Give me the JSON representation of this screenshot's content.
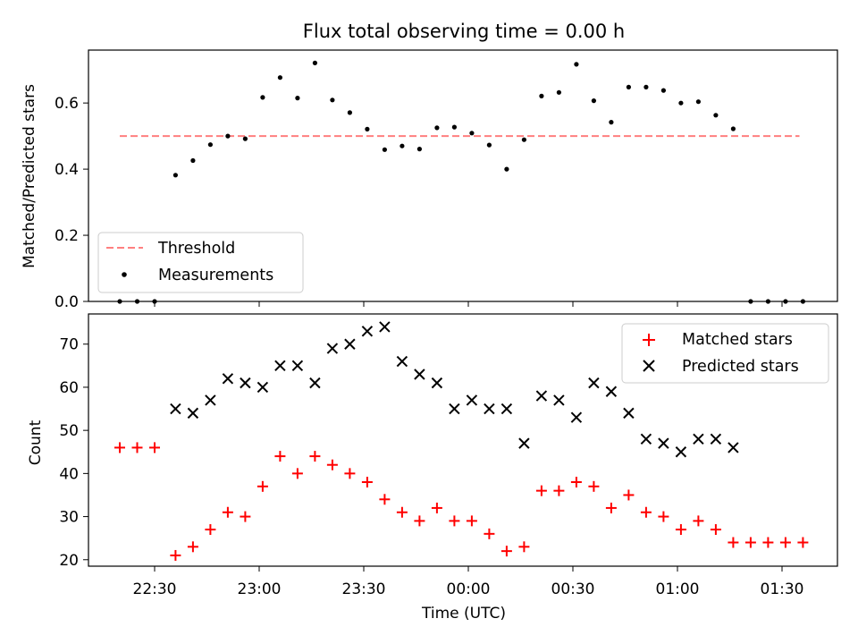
{
  "chart_data": [
    {
      "type": "scatter",
      "title": "Flux total observing time = 0.00 h",
      "ylabel": "Matched/Predicted stars",
      "xlabel": "",
      "ylim": [
        0,
        0.76
      ],
      "yticks": [
        0.0,
        0.2,
        0.4,
        0.6
      ],
      "ytick_labels": [
        "0.0",
        "0.2",
        "0.4",
        "0.6"
      ],
      "legend": {
        "position": "lower-left",
        "entries": [
          "Threshold",
          "Measurements"
        ]
      },
      "threshold": {
        "name": "Threshold",
        "value": 0.5,
        "x_start": "22:20",
        "x_end": "01:35",
        "color": "#ff7f7f"
      },
      "series": [
        {
          "name": "Measurements",
          "marker": "dot",
          "color": "#000000",
          "x": [
            "22:20",
            "22:25",
            "22:30",
            "22:36",
            "22:41",
            "22:46",
            "22:51",
            "22:56",
            "23:01",
            "23:06",
            "23:11",
            "23:16",
            "23:21",
            "23:26",
            "23:31",
            "23:36",
            "23:41",
            "23:46",
            "23:51",
            "23:56",
            "00:01",
            "00:06",
            "00:11",
            "00:16",
            "00:21",
            "00:26",
            "00:31",
            "00:36",
            "00:41",
            "00:46",
            "00:51",
            "00:56",
            "01:01",
            "01:06",
            "01:11",
            "01:16",
            "01:21",
            "01:26",
            "01:31",
            "01:36"
          ],
          "y": [
            0.0,
            0.0,
            0.0,
            0.382,
            0.426,
            0.474,
            0.5,
            0.492,
            0.617,
            0.677,
            0.615,
            0.721,
            0.609,
            0.571,
            0.521,
            0.459,
            0.47,
            0.461,
            0.525,
            0.527,
            0.509,
            0.473,
            0.4,
            0.489,
            0.621,
            0.632,
            0.717,
            0.607,
            0.542,
            0.648,
            0.648,
            0.638,
            0.6,
            0.604,
            0.563,
            0.522,
            0.0,
            0.0,
            0.0,
            0.0
          ]
        }
      ]
    },
    {
      "type": "scatter",
      "title": "",
      "ylabel": "Count",
      "xlabel": "Time (UTC)",
      "ylim": [
        18.5,
        77
      ],
      "yticks": [
        20,
        30,
        40,
        50,
        60,
        70
      ],
      "ytick_labels": [
        "20",
        "30",
        "40",
        "50",
        "60",
        "70"
      ],
      "xticks": [
        "22:30",
        "23:00",
        "23:30",
        "00:00",
        "00:30",
        "01:00",
        "01:30"
      ],
      "legend": {
        "position": "top-right",
        "entries": [
          "Matched stars",
          "Predicted stars"
        ]
      },
      "series": [
        {
          "name": "Matched stars",
          "marker": "plus",
          "color": "#ff0000",
          "x": [
            "22:20",
            "22:25",
            "22:30",
            "22:36",
            "22:41",
            "22:46",
            "22:51",
            "22:56",
            "23:01",
            "23:06",
            "23:11",
            "23:16",
            "23:21",
            "23:26",
            "23:31",
            "23:36",
            "23:41",
            "23:46",
            "23:51",
            "23:56",
            "00:01",
            "00:06",
            "00:11",
            "00:16",
            "00:21",
            "00:26",
            "00:31",
            "00:36",
            "00:41",
            "00:46",
            "00:51",
            "00:56",
            "01:01",
            "01:06",
            "01:11",
            "01:16",
            "01:21",
            "01:26",
            "01:31",
            "01:36"
          ],
          "y": [
            46,
            46,
            46,
            21,
            23,
            27,
            31,
            30,
            37,
            44,
            40,
            44,
            42,
            40,
            38,
            34,
            31,
            29,
            32,
            29,
            29,
            26,
            22,
            23,
            36,
            36,
            38,
            37,
            32,
            35,
            31,
            30,
            27,
            29,
            27,
            24,
            24,
            24,
            24,
            24
          ]
        },
        {
          "name": "Predicted stars",
          "marker": "x",
          "color": "#000000",
          "x": [
            "22:36",
            "22:41",
            "22:46",
            "22:51",
            "22:56",
            "23:01",
            "23:06",
            "23:11",
            "23:16",
            "23:21",
            "23:26",
            "23:31",
            "23:36",
            "23:41",
            "23:46",
            "23:51",
            "23:56",
            "00:01",
            "00:06",
            "00:11",
            "00:16",
            "00:21",
            "00:26",
            "00:31",
            "00:36",
            "00:41",
            "00:46",
            "00:51",
            "00:56",
            "01:01",
            "01:06",
            "01:11",
            "01:16"
          ],
          "y": [
            55,
            54,
            57,
            62,
            61,
            60,
            65,
            65,
            61,
            69,
            70,
            73,
            74,
            66,
            63,
            61,
            55,
            57,
            55,
            55,
            47,
            58,
            57,
            53,
            61,
            59,
            54,
            48,
            47,
            45,
            48,
            48,
            46
          ]
        }
      ]
    }
  ]
}
